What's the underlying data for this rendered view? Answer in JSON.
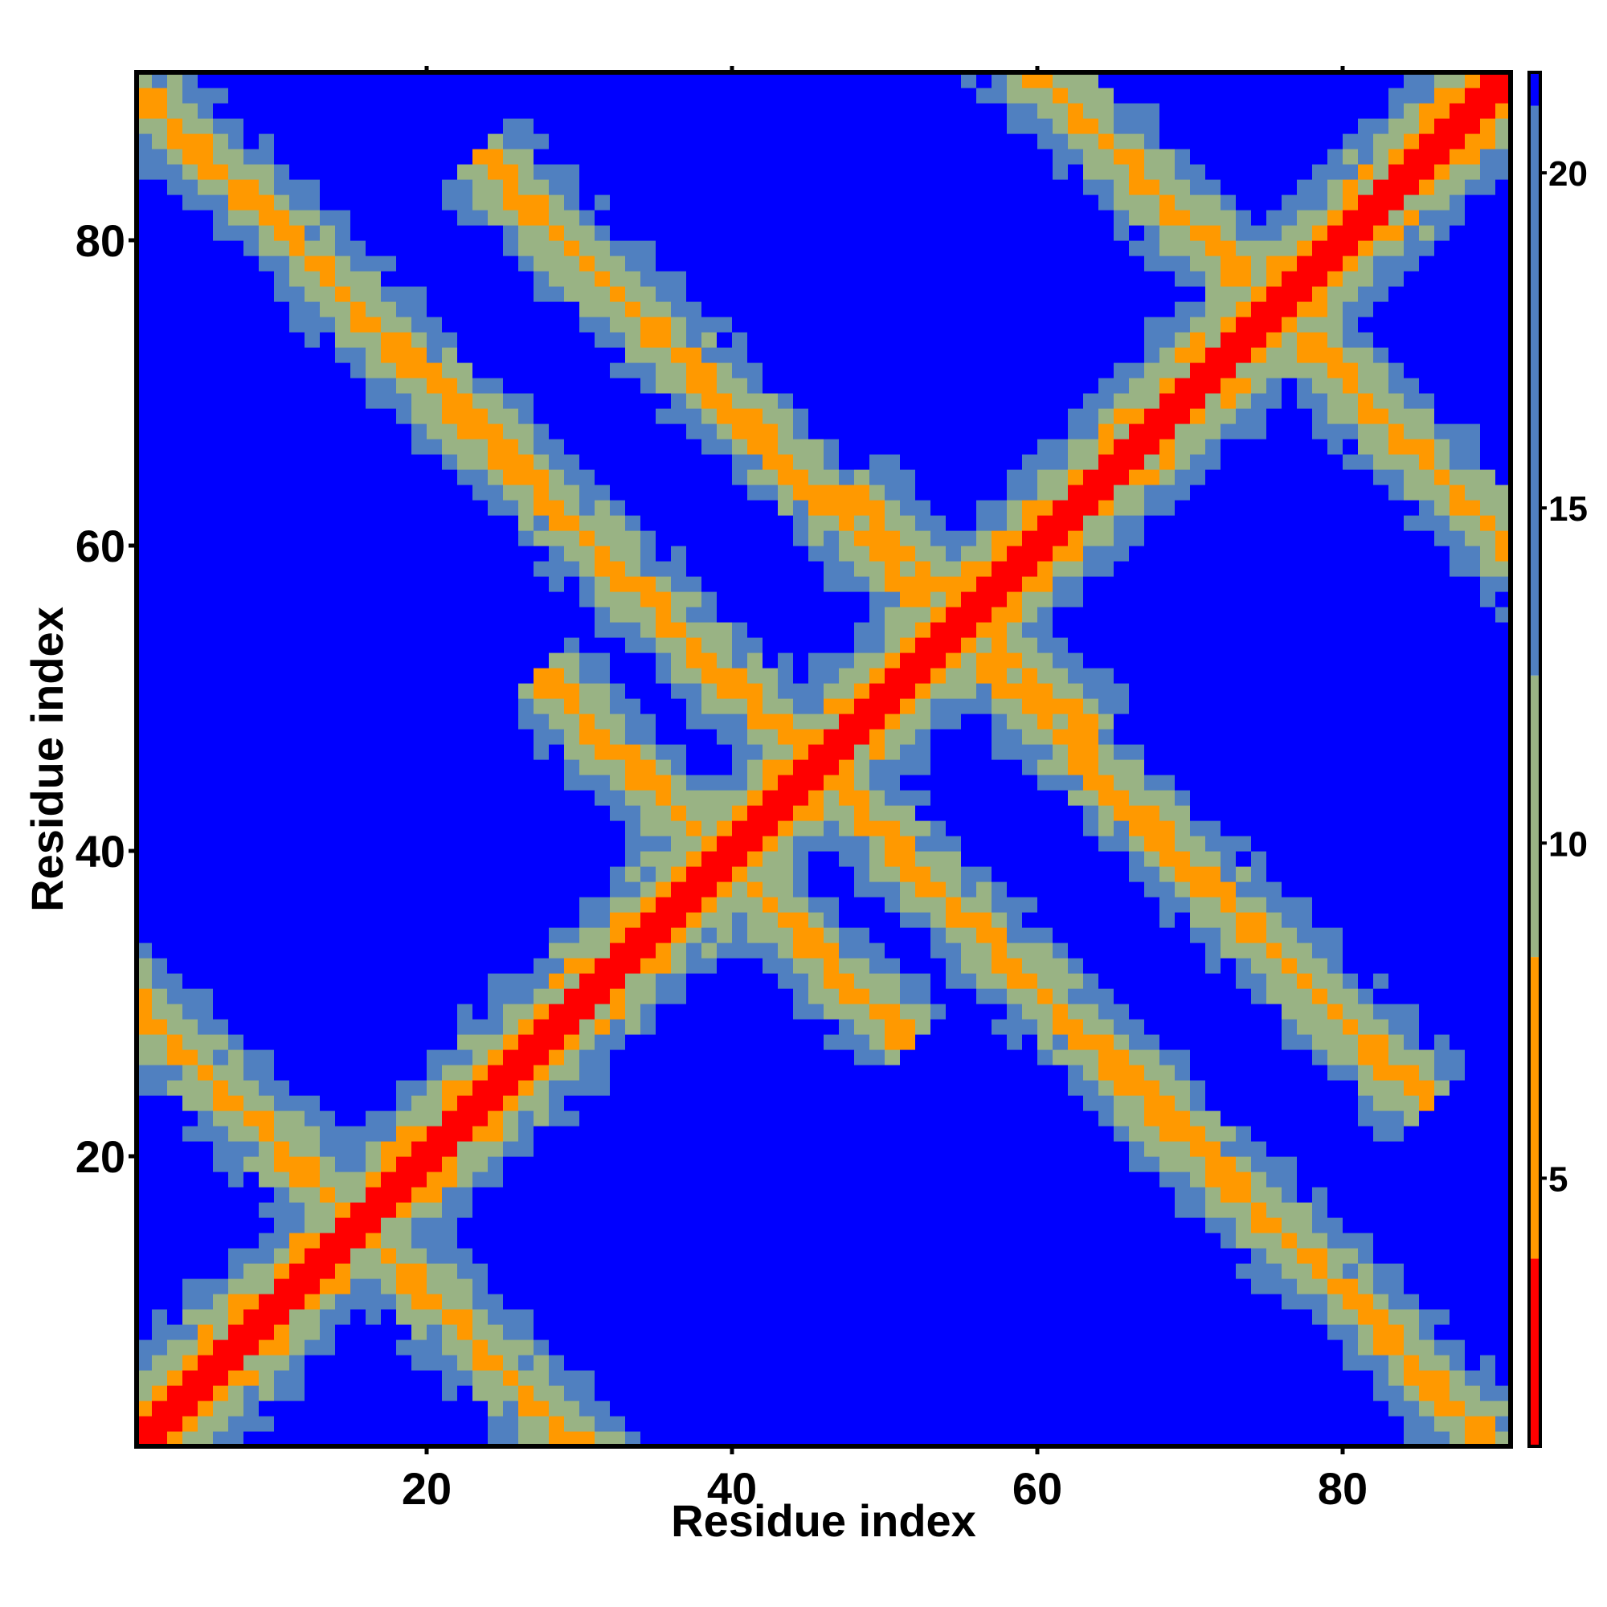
{
  "chart_data": {
    "type": "heatmap",
    "title": "",
    "xlabel": "Residue index",
    "ylabel": "Residue index",
    "n_residues": 90,
    "xlim": [
      1,
      91
    ],
    "ylim": [
      1,
      91
    ],
    "x_ticks": [
      {
        "value": 20,
        "label": "20"
      },
      {
        "value": 40,
        "label": "40"
      },
      {
        "value": 60,
        "label": "60"
      },
      {
        "value": 80,
        "label": "80"
      }
    ],
    "y_ticks": [
      {
        "value": 20,
        "label": "20"
      },
      {
        "value": 40,
        "label": "40"
      },
      {
        "value": 60,
        "label": "60"
      },
      {
        "value": 80,
        "label": "80"
      }
    ],
    "colorbar": {
      "range": [
        1,
        21.5
      ],
      "ticks": [
        {
          "value": 5,
          "label": "5"
        },
        {
          "value": 10,
          "label": "10"
        },
        {
          "value": 15,
          "label": "15"
        },
        {
          "value": 20,
          "label": "20"
        }
      ],
      "bands": [
        {
          "from": 1,
          "to": 3.8,
          "color": "#ff0000"
        },
        {
          "from": 3.8,
          "to": 8.3,
          "color": "#ff9900"
        },
        {
          "from": 8.3,
          "to": 12.5,
          "color": "#99b384"
        },
        {
          "from": 12.5,
          "to": 21,
          "color": "#5080c0"
        },
        {
          "from": 21,
          "to": 21.5,
          "color": "#0000ff"
        }
      ]
    },
    "colors": {
      "diagonal": "#ff0000",
      "contact": "#ff9900",
      "near": "#99b384",
      "mid": "#5080c0",
      "far": "#0000ff"
    },
    "contact_bands": [
      {
        "kind": "parallel",
        "offset": 0,
        "from": 1,
        "to": 90
      },
      {
        "kind": "antiparallel",
        "sum": 30,
        "from": 1,
        "to": 29
      },
      {
        "kind": "antiparallel",
        "sum": 90,
        "from": 1,
        "to": 89
      },
      {
        "kind": "antiparallel",
        "sum": 150,
        "from": 60,
        "to": 90
      },
      {
        "kind": "antiparallel",
        "sum": 108,
        "from": 26,
        "to": 82
      },
      {
        "kind": "antiparallel",
        "sum": 78,
        "from": 30,
        "to": 48
      },
      {
        "kind": "antiparallel",
        "sum": 110,
        "from": 50,
        "to": 60
      }
    ]
  }
}
